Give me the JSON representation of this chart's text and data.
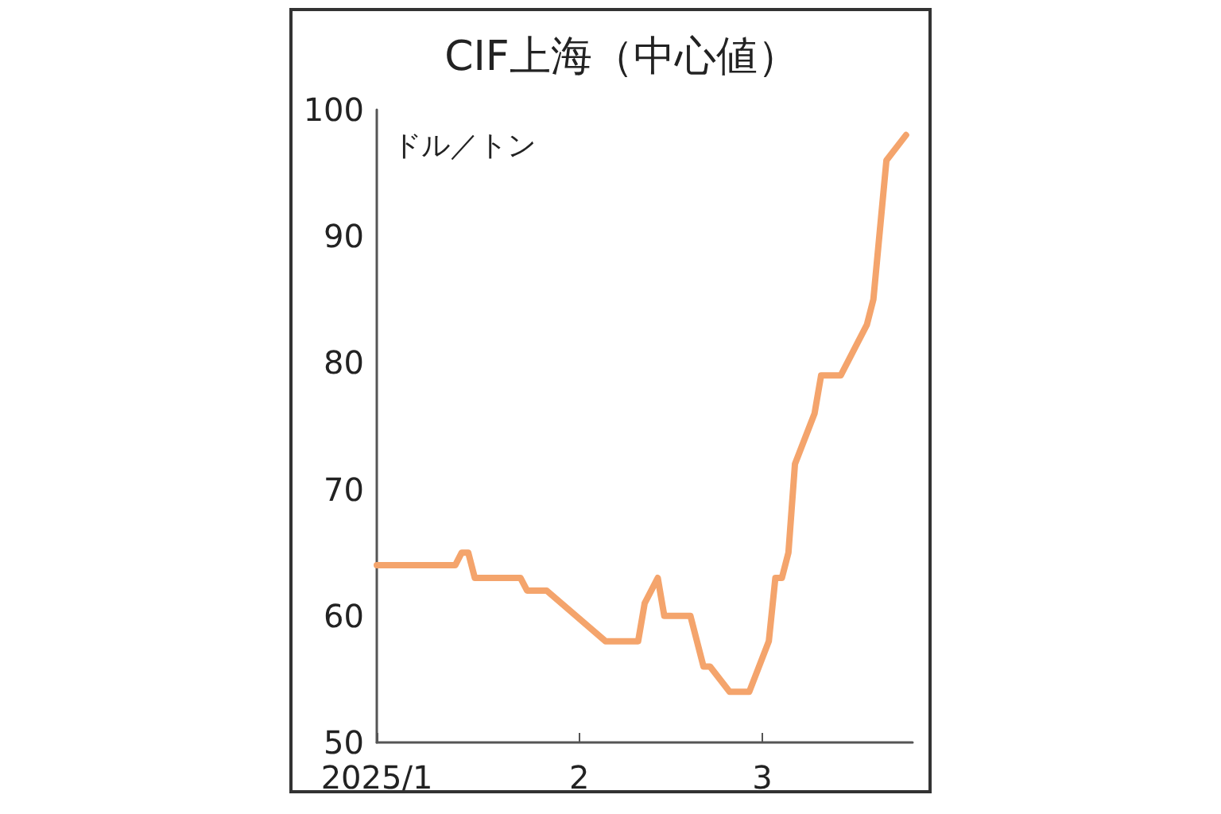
{
  "chart_data": {
    "type": "line",
    "title": "CIF上海（中心値）",
    "ylabel": "ドル／トン",
    "x": [
      "2025-01-01",
      "2025-01-13",
      "2025-01-14",
      "2025-01-15",
      "2025-01-16",
      "2025-01-23",
      "2025-01-24",
      "2025-01-27",
      "2025-02-05",
      "2025-02-10",
      "2025-02-11",
      "2025-02-13",
      "2025-02-14",
      "2025-02-18",
      "2025-02-20",
      "2025-02-21",
      "2025-02-24",
      "2025-02-27",
      "2025-03-02",
      "2025-03-03",
      "2025-03-04",
      "2025-03-05",
      "2025-03-06",
      "2025-03-09",
      "2025-03-10",
      "2025-03-13",
      "2025-03-17",
      "2025-03-18",
      "2025-03-20",
      "2025-03-23"
    ],
    "series": [
      {
        "color": "#f4a46c",
        "values": [
          64,
          64,
          65,
          65,
          63,
          63,
          62,
          62,
          58,
          58,
          61,
          63,
          60,
          60,
          56,
          56,
          54,
          54,
          58,
          63,
          63,
          65,
          72,
          76,
          79,
          79,
          83,
          85,
          96,
          98
        ]
      }
    ],
    "xlim": [
      "2025-01-01",
      "2025-03-24"
    ],
    "xticks": [
      {
        "value": "2025-01-01",
        "label": "2025/1"
      },
      {
        "value": "2025-02-01",
        "label": "2"
      },
      {
        "value": "2025-03-01",
        "label": "3"
      }
    ],
    "ylim": [
      50,
      100
    ],
    "yticks": [
      50,
      60,
      70,
      80,
      90,
      100
    ],
    "grid": false,
    "marker": "none",
    "line_style": "solid"
  }
}
